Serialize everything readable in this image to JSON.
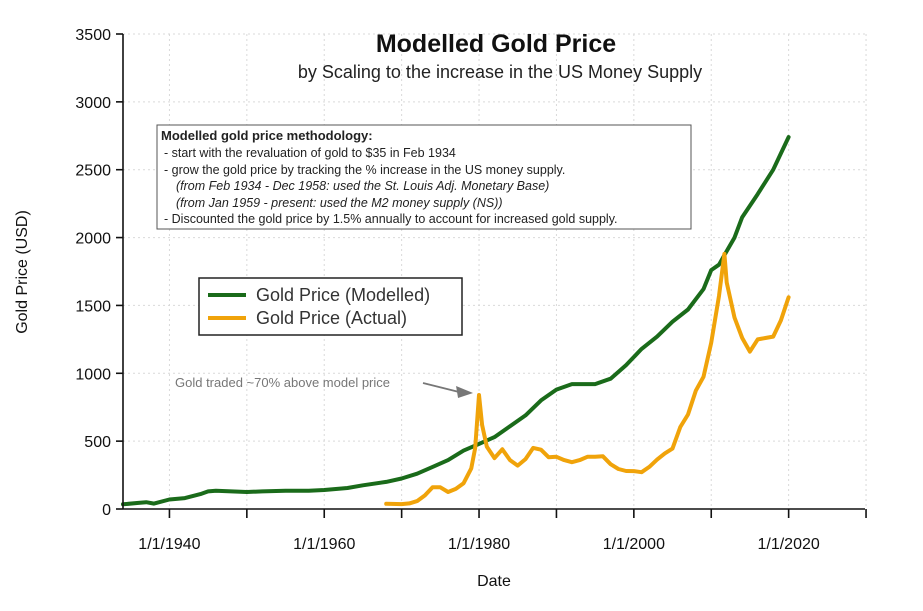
{
  "chart_data": {
    "type": "line",
    "title": "Modelled Gold Price",
    "subtitle": "by Scaling to the increase in the US Money Supply",
    "xlabel": "Date",
    "ylabel": "Gold Price (USD)",
    "xlim": [
      1934,
      2030
    ],
    "ylim": [
      0,
      3500
    ],
    "xticks": [
      1940,
      1960,
      1980,
      2000,
      2020
    ],
    "xtick_labels": [
      "1/1/1940",
      "1/1/1960",
      "1/1/1980",
      "1/1/2000",
      "1/1/2020"
    ],
    "xtick_minor": [
      1950,
      1970,
      1990,
      2010,
      2030
    ],
    "yticks": [
      0,
      500,
      1000,
      1500,
      2000,
      2500,
      3000,
      3500
    ],
    "grid": true,
    "legend_position": "center-left",
    "series": [
      {
        "name": "Gold Price (Modelled)",
        "color": "#1a6b1a",
        "x": [
          1934,
          1936,
          1937,
          1938,
          1940,
          1942,
          1944,
          1945,
          1946,
          1948,
          1950,
          1952,
          1955,
          1958,
          1960,
          1963,
          1965,
          1968,
          1970,
          1972,
          1974,
          1976,
          1978,
          1980,
          1982,
          1984,
          1986,
          1988,
          1990,
          1992,
          1995,
          1997,
          1999,
          2001,
          2003,
          2005,
          2007,
          2009,
          2010,
          2011,
          2012,
          2013,
          2014,
          2016,
          2018,
          2019,
          2020
        ],
        "y": [
          35,
          45,
          50,
          40,
          70,
          80,
          110,
          130,
          135,
          130,
          125,
          130,
          135,
          135,
          140,
          155,
          175,
          200,
          225,
          260,
          310,
          360,
          430,
          480,
          530,
          610,
          690,
          800,
          880,
          920,
          920,
          960,
          1060,
          1180,
          1270,
          1380,
          1470,
          1620,
          1760,
          1800,
          1900,
          2000,
          2150,
          2320,
          2500,
          2620,
          2740
        ]
      },
      {
        "name": "Gold Price (Actual)",
        "color": "#f0a30a",
        "x": [
          1968,
          1970,
          1971,
          1972,
          1973,
          1974,
          1975,
          1976,
          1977,
          1978,
          1979,
          1979.5,
          1980,
          1980.4,
          1981,
          1982,
          1983,
          1984,
          1985,
          1986,
          1987,
          1988,
          1989,
          1990,
          1991,
          1992,
          1993,
          1994,
          1995,
          1996,
          1997,
          1998,
          1999,
          2000,
          2001,
          2002,
          2003,
          2004,
          2005,
          2006,
          2007,
          2008,
          2009,
          2010,
          2011,
          2011.7,
          2012,
          2013,
          2014,
          2015,
          2016,
          2017,
          2018,
          2019,
          2020
        ],
        "y": [
          38,
          36,
          41,
          58,
          100,
          160,
          160,
          125,
          148,
          190,
          300,
          450,
          840,
          620,
          460,
          375,
          440,
          360,
          320,
          368,
          450,
          437,
          381,
          385,
          360,
          345,
          360,
          385,
          385,
          388,
          330,
          295,
          280,
          279,
          271,
          310,
          364,
          410,
          445,
          604,
          696,
          872,
          974,
          1225,
          1570,
          1880,
          1670,
          1410,
          1260,
          1160,
          1250,
          1260,
          1270,
          1390,
          1560
        ]
      }
    ],
    "legend": [
      "Gold Price (Modelled)",
      "Gold Price (Actual)"
    ],
    "methodology_box": {
      "title": "Modelled gold price methodology:",
      "lines": [
        "- start with the revaluation of gold to $35 in Feb 1934",
        "- grow the gold price by tracking the % increase in the US money supply.",
        "(from Feb 1934 - Dec 1958: used the St. Louis Adj. Monetary Base)",
        "(from Jan 1959 - present: used the M2 money supply (NS))",
        "- Discounted the gold price by 1.5% annually to account for increased gold supply."
      ]
    },
    "annotation": {
      "text": "Gold traded ~70% above model price",
      "target_x": 1980,
      "target_y": 840
    }
  }
}
